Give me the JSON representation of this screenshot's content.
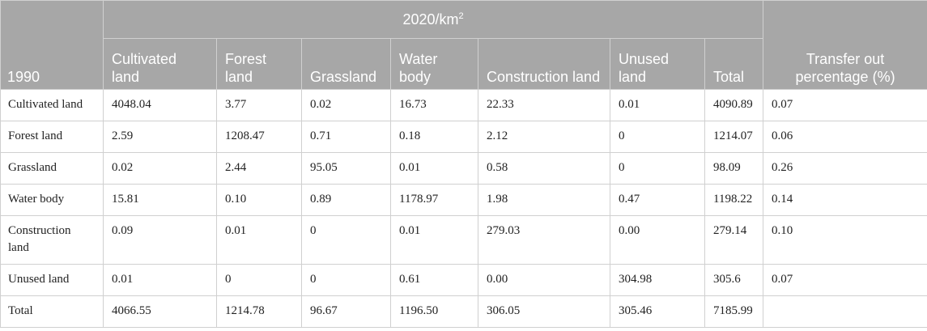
{
  "table": {
    "corner_label": "1990",
    "group_header_prefix": "2020/km",
    "group_header_sup": "2",
    "columns": [
      "Cultivated land",
      "Forest land",
      "Grassland",
      "Water body",
      "Construction land",
      "Unused land",
      "Total"
    ],
    "last_column": "Transfer out percentage (%)",
    "rows": [
      {
        "label": "Cultivated land",
        "cells": [
          "4048.04",
          "3.77",
          "0.02",
          "16.73",
          "22.33",
          "0.01",
          "4090.89",
          "0.07"
        ]
      },
      {
        "label": "Forest land",
        "cells": [
          "2.59",
          "1208.47",
          "0.71",
          "0.18",
          "2.12",
          "0",
          "1214.07",
          "0.06"
        ]
      },
      {
        "label": "Grassland",
        "cells": [
          "0.02",
          "2.44",
          "95.05",
          "0.01",
          "0.58",
          "0",
          "98.09",
          "0.26"
        ]
      },
      {
        "label": "Water body",
        "cells": [
          "15.81",
          "0.10",
          "0.89",
          "1178.97",
          "1.98",
          "0.47",
          "1198.22",
          "0.14"
        ]
      },
      {
        "label": "Construction land",
        "cells": [
          "0.09",
          "0.01",
          "0",
          "0.01",
          "279.03",
          "0.00",
          "279.14",
          "0.10"
        ]
      },
      {
        "label": "Unused land",
        "cells": [
          "0.01",
          "0",
          "0",
          "0.61",
          "0.00",
          "304.98",
          "305.6",
          "0.07"
        ]
      },
      {
        "label": "Total",
        "cells": [
          "4066.55",
          "1214.78",
          "96.67",
          "1196.50",
          "306.05",
          "305.46",
          "7185.99",
          ""
        ]
      }
    ]
  }
}
